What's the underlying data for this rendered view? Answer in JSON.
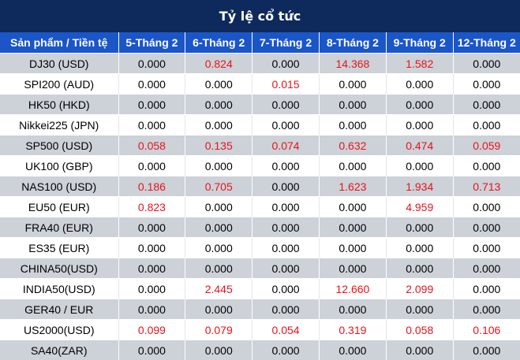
{
  "title": "Tỷ lệ cổ tức",
  "header": {
    "product_col": "Sản phẩm / Tiền tệ",
    "dates": [
      "5-Tháng 2",
      "6-Tháng 2",
      "7-Tháng 2",
      "8-Tháng 2",
      "9-Tháng 2",
      "12-Tháng 2"
    ]
  },
  "colors": {
    "title_bg": "#0e2a5c",
    "header_bg": "#1a56c8",
    "positive": "#e8131b",
    "stripe": "#cdd1d8"
  },
  "rows": [
    {
      "product": "DJ30 (USD)",
      "values": [
        "0.000",
        "0.824",
        "0.000",
        "14.368",
        "1.582",
        "0.000"
      ]
    },
    {
      "product": "SPI200 (AUD)",
      "values": [
        "0.000",
        "0.000",
        "0.015",
        "0.000",
        "0.000",
        "0.000"
      ]
    },
    {
      "product": "HK50 (HKD)",
      "values": [
        "0.000",
        "0.000",
        "0.000",
        "0.000",
        "0.000",
        "0.000"
      ]
    },
    {
      "product": "Nikkei225 (JPN)",
      "values": [
        "0.000",
        "0.000",
        "0.000",
        "0.000",
        "0.000",
        "0.000"
      ]
    },
    {
      "product": "SP500 (USD)",
      "values": [
        "0.058",
        "0.135",
        "0.074",
        "0.632",
        "0.474",
        "0.059"
      ]
    },
    {
      "product": "UK100 (GBP)",
      "values": [
        "0.000",
        "0.000",
        "0.000",
        "0.000",
        "0.000",
        "0.000"
      ]
    },
    {
      "product": "NAS100 (USD)",
      "values": [
        "0.186",
        "0.705",
        "0.000",
        "1.623",
        "1.934",
        "0.713"
      ]
    },
    {
      "product": "EU50 (EUR)",
      "values": [
        "0.823",
        "0.000",
        "0.000",
        "0.000",
        "4.959",
        "0.000"
      ]
    },
    {
      "product": "FRA40 (EUR)",
      "values": [
        "0.000",
        "0.000",
        "0.000",
        "0.000",
        "0.000",
        "0.000"
      ]
    },
    {
      "product": "ES35 (EUR)",
      "values": [
        "0.000",
        "0.000",
        "0.000",
        "0.000",
        "0.000",
        "0.000"
      ]
    },
    {
      "product": "CHINA50(USD)",
      "values": [
        "0.000",
        "0.000",
        "0.000",
        "0.000",
        "0.000",
        "0.000"
      ]
    },
    {
      "product": "INDIA50(USD)",
      "values": [
        "0.000",
        "2.445",
        "0.000",
        "12.660",
        "2.099",
        "0.000"
      ]
    },
    {
      "product": "GER40 / EUR",
      "values": [
        "0.000",
        "0.000",
        "0.000",
        "0.000",
        "0.000",
        "0.000"
      ]
    },
    {
      "product": "US2000(USD)",
      "values": [
        "0.099",
        "0.079",
        "0.054",
        "0.319",
        "0.058",
        "0.106"
      ]
    },
    {
      "product": "SA40(ZAR)",
      "values": [
        "0.000",
        "0.000",
        "0.000",
        "0.000",
        "0.000",
        "0.000"
      ]
    }
  ]
}
